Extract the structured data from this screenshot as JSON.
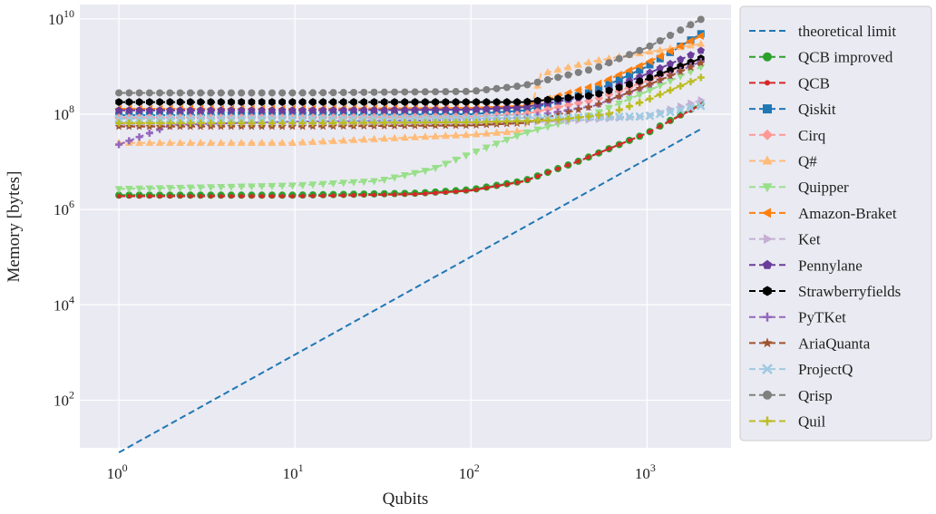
{
  "chart_data": {
    "type": "line",
    "xlabel": "Qubits",
    "ylabel": "Memory [bytes]",
    "xscale": "log",
    "yscale": "log",
    "xlim": [
      0.6,
      3000
    ],
    "ylim": [
      10,
      20000000000
    ],
    "grid": true,
    "legend_position": "right",
    "x_ticks": [
      {
        "base": "10",
        "exp": "0",
        "value": 1
      },
      {
        "base": "10",
        "exp": "1",
        "value": 10
      },
      {
        "base": "10",
        "exp": "2",
        "value": 100
      },
      {
        "base": "10",
        "exp": "3",
        "value": 1000
      }
    ],
    "y_ticks": [
      {
        "base": "10",
        "exp": "2",
        "value": 100
      },
      {
        "base": "10",
        "exp": "4",
        "value": 10000
      },
      {
        "base": "10",
        "exp": "6",
        "value": 1000000
      },
      {
        "base": "10",
        "exp": "8",
        "value": 100000000
      },
      {
        "base": "10",
        "exp": "10",
        "value": 10000000000
      }
    ],
    "series": [
      {
        "name": "theoretical limit",
        "color": "#1f77b4",
        "marker": "none",
        "points": [
          [
            1,
            8
          ],
          [
            2048,
            50000000
          ]
        ]
      },
      {
        "name": "QCB improved",
        "color": "#2ca02c",
        "marker": "circle",
        "points": [
          [
            1,
            2000000
          ],
          [
            10,
            2000000
          ],
          [
            50,
            2200000
          ],
          [
            100,
            2600000
          ],
          [
            200,
            4000000
          ],
          [
            400,
            10000000
          ],
          [
            1000,
            40000000
          ],
          [
            2048,
            170000000
          ]
        ]
      },
      {
        "name": "QCB",
        "color": "#d62728",
        "marker": "dot",
        "points": [
          [
            1,
            1900000
          ],
          [
            10,
            1900000
          ],
          [
            50,
            2100000
          ],
          [
            100,
            2500000
          ],
          [
            200,
            3900000
          ],
          [
            400,
            10000000
          ],
          [
            1000,
            40000000
          ],
          [
            2048,
            160000000
          ]
        ]
      },
      {
        "name": "Qiskit",
        "color": "#1f77b4",
        "marker": "square",
        "points": [
          [
            1,
            95000000
          ],
          [
            10,
            95000000
          ],
          [
            100,
            100000000
          ],
          [
            200,
            120000000
          ],
          [
            500,
            300000000
          ],
          [
            1000,
            1000000000
          ],
          [
            2048,
            5000000000
          ]
        ]
      },
      {
        "name": "Cirq",
        "color": "#ff9896",
        "marker": "diamond",
        "points": [
          [
            1,
            85000000
          ],
          [
            10,
            85000000
          ],
          [
            100,
            90000000
          ],
          [
            200,
            100000000
          ],
          [
            500,
            200000000
          ],
          [
            1000,
            500000000
          ],
          [
            2048,
            1500000000
          ]
        ]
      },
      {
        "name": "Q#",
        "color": "#ffbb78",
        "marker": "triangle-up",
        "points": [
          [
            1,
            25000000
          ],
          [
            10,
            25000000
          ],
          [
            50,
            33000000
          ],
          [
            100,
            37000000
          ],
          [
            200,
            45000000
          ],
          [
            250,
            700000000
          ],
          [
            500,
            1300000000
          ],
          [
            1000,
            2000000000
          ],
          [
            2048,
            3000000000
          ]
        ]
      },
      {
        "name": "Quipper",
        "color": "#98df8a",
        "marker": "triangle-down",
        "points": [
          [
            1,
            2700000
          ],
          [
            10,
            3200000
          ],
          [
            30,
            4000000
          ],
          [
            60,
            7000000
          ],
          [
            100,
            15000000
          ],
          [
            200,
            40000000
          ],
          [
            500,
            100000000
          ],
          [
            1000,
            300000000
          ],
          [
            2048,
            1000000000
          ]
        ]
      },
      {
        "name": "Amazon-Braket",
        "color": "#ff7f0e",
        "marker": "triangle-left",
        "points": [
          [
            1,
            130000000
          ],
          [
            10,
            130000000
          ],
          [
            100,
            135000000
          ],
          [
            200,
            150000000
          ],
          [
            500,
            400000000
          ],
          [
            1000,
            1200000000
          ],
          [
            2048,
            4500000000
          ]
        ]
      },
      {
        "name": "Ket",
        "color": "#c5b0d5",
        "marker": "triangle-right",
        "points": [
          [
            1,
            60000000
          ],
          [
            10,
            60000000
          ],
          [
            100,
            65000000
          ],
          [
            300,
            70000000
          ],
          [
            1000,
            90000000
          ],
          [
            2048,
            200000000
          ]
        ]
      },
      {
        "name": "Pennylane",
        "color": "#6a3d9a",
        "marker": "pentagon",
        "points": [
          [
            1,
            120000000
          ],
          [
            10,
            120000000
          ],
          [
            100,
            125000000
          ],
          [
            200,
            140000000
          ],
          [
            500,
            250000000
          ],
          [
            1000,
            700000000
          ],
          [
            2048,
            2200000000
          ]
        ]
      },
      {
        "name": "Strawberryfields",
        "color": "#000000",
        "marker": "hexagon",
        "points": [
          [
            1,
            180000000
          ],
          [
            10,
            180000000
          ],
          [
            100,
            180000000
          ],
          [
            200,
            180000000
          ],
          [
            500,
            250000000
          ],
          [
            1000,
            550000000
          ],
          [
            2048,
            1500000000
          ]
        ]
      },
      {
        "name": "PyTKet",
        "color": "#9467bd",
        "marker": "plus",
        "points": [
          [
            1,
            23000000
          ],
          [
            2,
            60000000
          ],
          [
            10,
            70000000
          ],
          [
            100,
            75000000
          ],
          [
            200,
            85000000
          ],
          [
            500,
            150000000
          ],
          [
            1000,
            400000000
          ],
          [
            2048,
            1300000000
          ]
        ]
      },
      {
        "name": "AriaQuanta",
        "color": "#a0522d",
        "marker": "star",
        "points": [
          [
            1,
            55000000
          ],
          [
            10,
            55000000
          ],
          [
            100,
            58000000
          ],
          [
            200,
            65000000
          ],
          [
            500,
            150000000
          ],
          [
            1000,
            400000000
          ],
          [
            2048,
            1200000000
          ]
        ]
      },
      {
        "name": "ProjectQ",
        "color": "#9ecae1",
        "marker": "x",
        "points": [
          [
            1,
            80000000
          ],
          [
            10,
            80000000
          ],
          [
            100,
            82000000
          ],
          [
            300,
            85000000
          ],
          [
            1000,
            90000000
          ],
          [
            2048,
            150000000
          ]
        ]
      },
      {
        "name": "Qrisp",
        "color": "#7f7f7f",
        "marker": "circle",
        "points": [
          [
            1,
            280000000
          ],
          [
            10,
            280000000
          ],
          [
            100,
            300000000
          ],
          [
            200,
            400000000
          ],
          [
            500,
            900000000
          ],
          [
            1000,
            2500000000
          ],
          [
            2048,
            10000000000
          ]
        ]
      },
      {
        "name": "Quil",
        "color": "#bcbd22",
        "marker": "plus",
        "points": [
          [
            1,
            65000000
          ],
          [
            10,
            65000000
          ],
          [
            100,
            68000000
          ],
          [
            300,
            75000000
          ],
          [
            600,
            100000000
          ],
          [
            1000,
            200000000
          ],
          [
            2048,
            600000000
          ]
        ]
      }
    ]
  }
}
